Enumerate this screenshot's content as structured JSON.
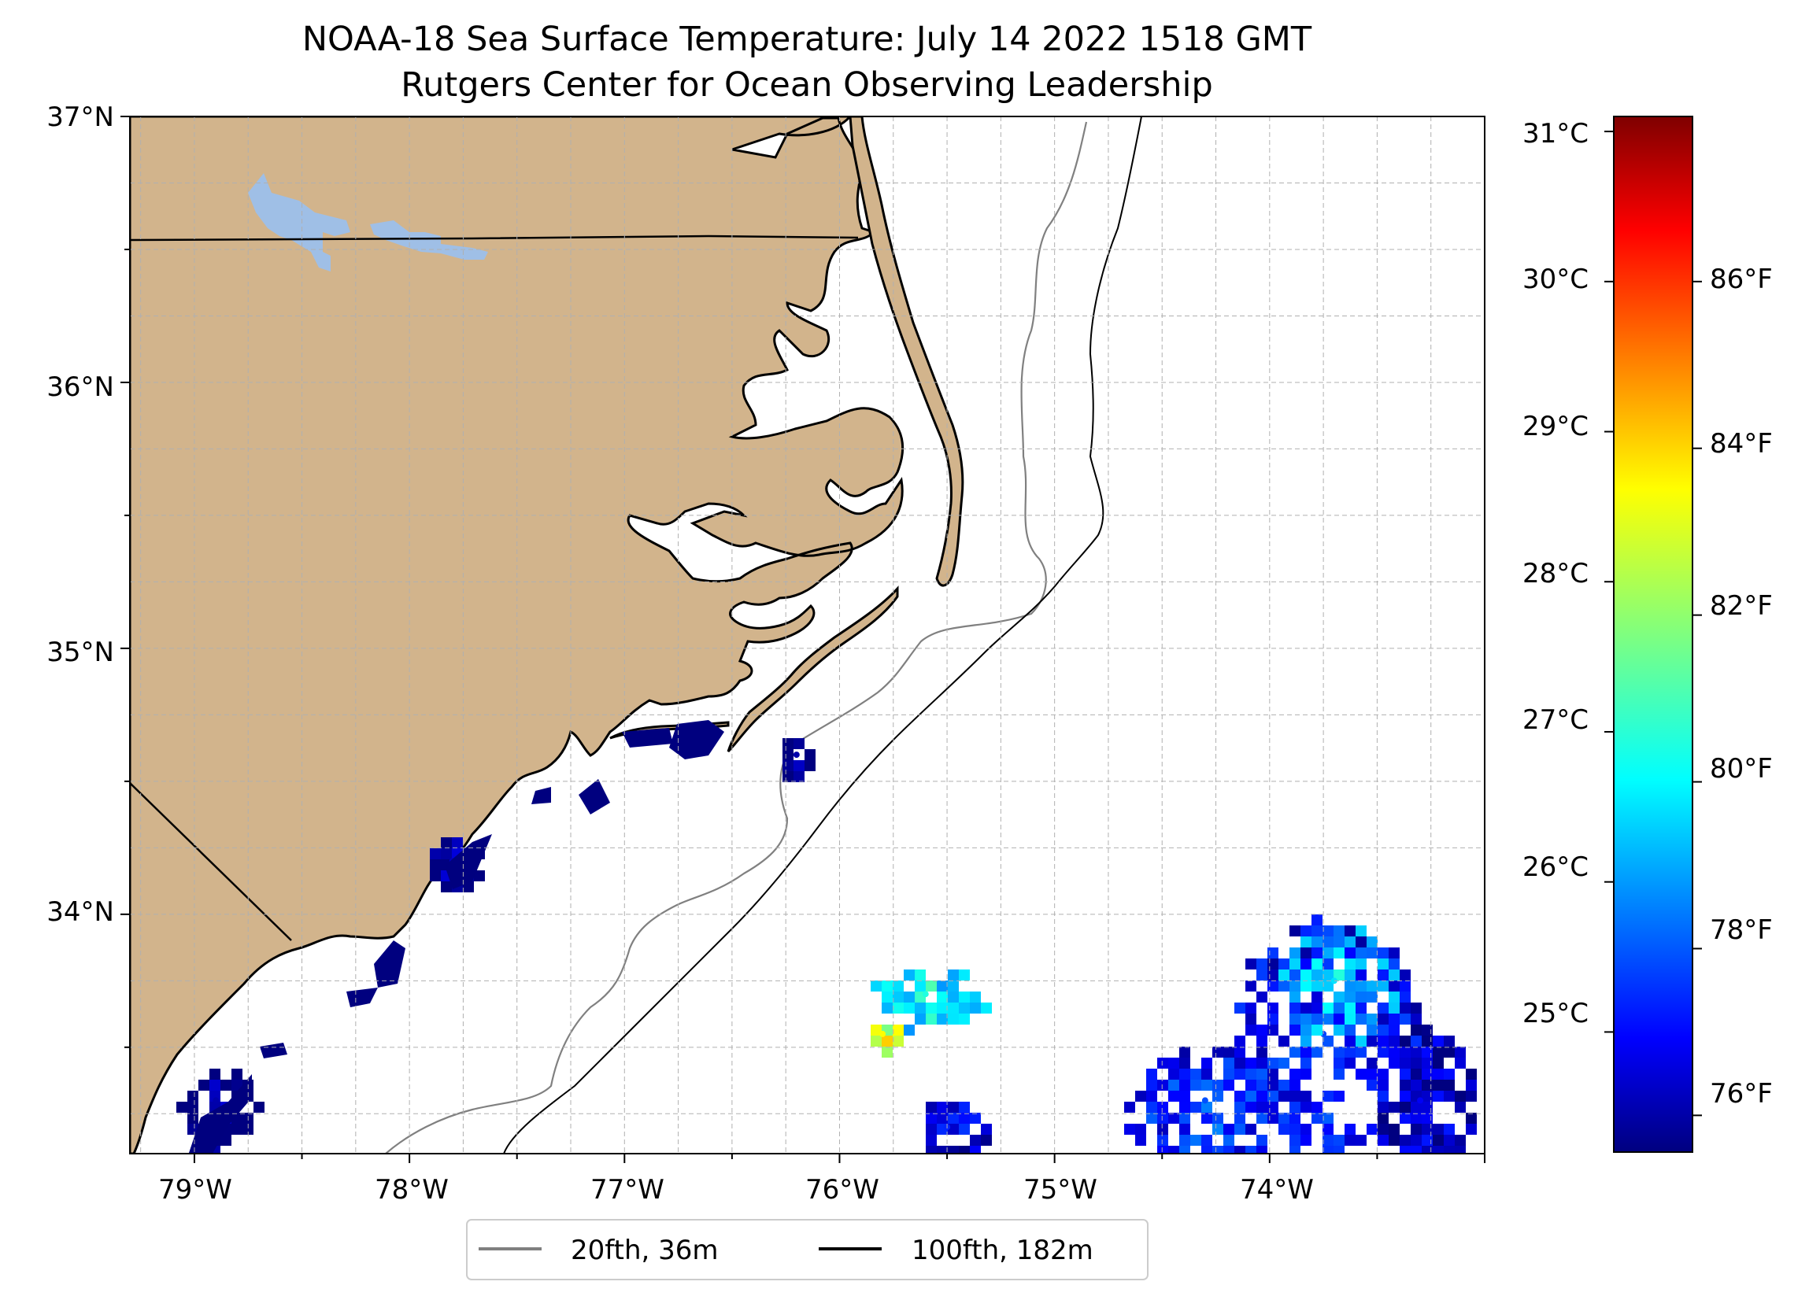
{
  "title": {
    "line1": "NOAA-18 Sea Surface Temperature: July 14 2022 1518 GMT",
    "line2": "Rutgers Center for Ocean Observing Leadership"
  },
  "map": {
    "lon_range": [
      -79.3,
      -73.0
    ],
    "lat_range": [
      33.1,
      37.0
    ],
    "lon_ticks": [
      "79°W",
      "78°W",
      "77°W",
      "76°W",
      "75°W",
      "74°W"
    ],
    "lat_ticks": [
      "37°N",
      "36°N",
      "35°N",
      "34°N"
    ],
    "land_color": "#d2b48c",
    "lake_color": "#9fbfe6",
    "gridlines": true
  },
  "legend": {
    "items": [
      {
        "label": "20fth, 36m",
        "color": "#808080"
      },
      {
        "label": "100fth, 182m",
        "color": "#000000"
      }
    ],
    "placement": "bottom-center"
  },
  "colorbar": {
    "colormap": "jet",
    "celsius_ticks": [
      "31°C",
      "30°C",
      "29°C",
      "28°C",
      "27°C",
      "26°C",
      "25°C"
    ],
    "fahrenheit_ticks": [
      "86°F",
      "84°F",
      "82°F",
      "80°F",
      "78°F",
      "76°F"
    ],
    "range_c": [
      24.2,
      31.1
    ]
  },
  "chart_data": {
    "type": "heatmap",
    "description_units": "sea surface temperature, °C",
    "vmin_c": 24.2,
    "vmax_c": 31.1,
    "patches": [
      {
        "lon": -73.75,
        "lat": 33.55,
        "temp_c": 25.5
      },
      {
        "lon": -73.7,
        "lat": 33.75,
        "temp_c": 26.6
      },
      {
        "lon": -74.3,
        "lat": 33.3,
        "temp_c": 25.6
      },
      {
        "lon": -73.3,
        "lat": 33.3,
        "temp_c": 25.0
      },
      {
        "lon": -75.6,
        "lat": 33.7,
        "temp_c": 27.0
      },
      {
        "lon": -75.8,
        "lat": 33.55,
        "temp_c": 28.5
      },
      {
        "lon": -75.5,
        "lat": 33.2,
        "temp_c": 25.3
      },
      {
        "lon": -76.2,
        "lat": 34.6,
        "temp_c": 24.5
      },
      {
        "lon": -77.8,
        "lat": 34.2,
        "temp_c": 24.6
      },
      {
        "lon": -78.9,
        "lat": 33.3,
        "temp_c": 24.5
      }
    ]
  }
}
